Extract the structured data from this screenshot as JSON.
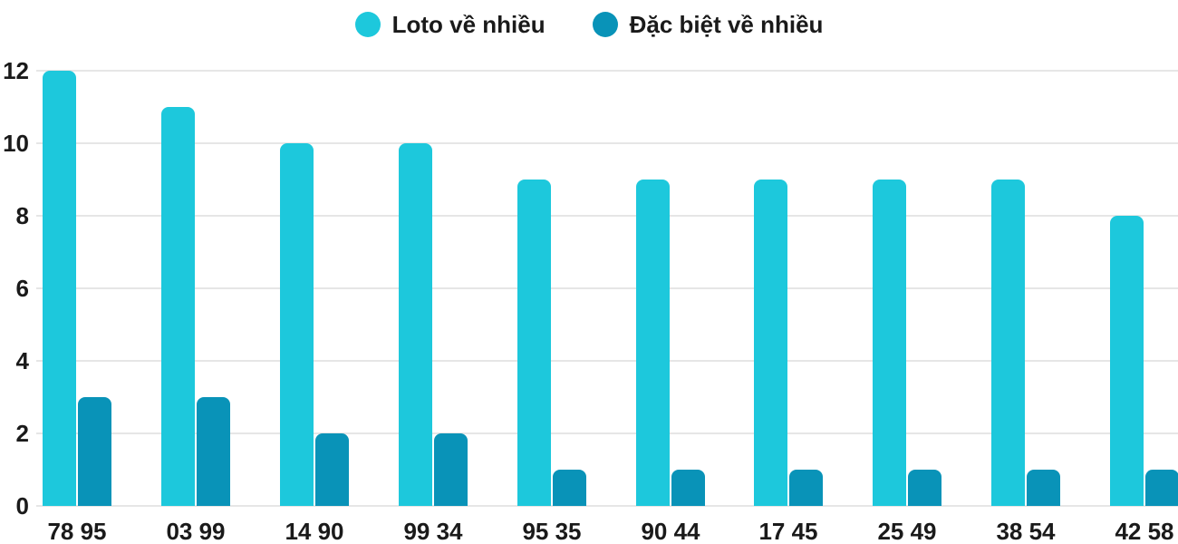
{
  "chart_data": {
    "type": "bar",
    "categories": [
      "78 95",
      "03 99",
      "14 90",
      "99 34",
      "95 35",
      "90 44",
      "17 45",
      "25 49",
      "38 54",
      "42 58"
    ],
    "series": [
      {
        "name": "Loto về nhiều",
        "color": "#1DC8DC",
        "values": [
          12,
          11,
          10,
          10,
          9,
          9,
          9,
          9,
          9,
          8
        ]
      },
      {
        "name": "Đặc biệt về nhiều",
        "color": "#0993B8",
        "values": [
          3,
          3,
          2,
          2,
          1,
          1,
          1,
          1,
          1,
          1
        ]
      }
    ],
    "title": "",
    "xlabel": "",
    "ylabel": "",
    "ylim": [
      0,
      12
    ],
    "yticks": [
      0,
      2,
      4,
      6,
      8,
      10,
      12
    ],
    "grid": true,
    "legend_position": "top",
    "colors": {
      "grid": "#E6E6E6",
      "text": "#1A1A1A",
      "background": "#FFFFFF"
    }
  }
}
